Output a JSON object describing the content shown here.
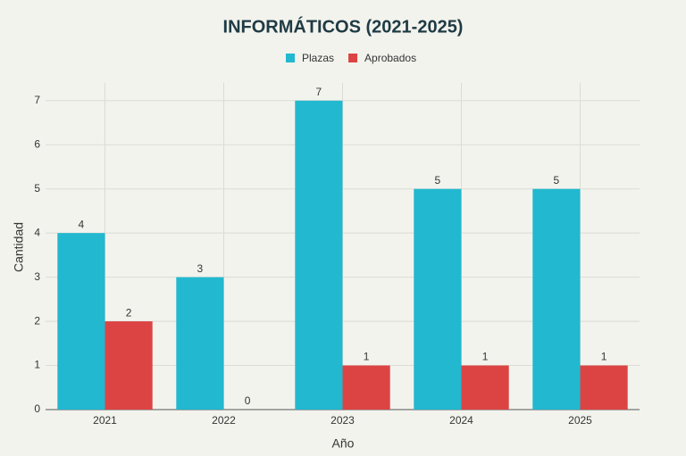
{
  "chart_data": {
    "type": "bar",
    "title": "INFORMÁTICOS (2021-2025)",
    "x_label": "Año",
    "y_label": "Cantidad",
    "categories": [
      "2021",
      "2022",
      "2023",
      "2024",
      "2025"
    ],
    "series": [
      {
        "name": "Plazas",
        "color": "#22b8cf",
        "values": [
          4,
          3,
          7,
          5,
          5
        ]
      },
      {
        "name": "Aprobados",
        "color": "#dc4444",
        "values": [
          2,
          0,
          1,
          1,
          1
        ]
      }
    ],
    "ylim": [
      0,
      7.4
    ],
    "yticks": [
      0,
      1,
      2,
      3,
      4,
      5,
      6,
      7
    ],
    "grid": true
  }
}
